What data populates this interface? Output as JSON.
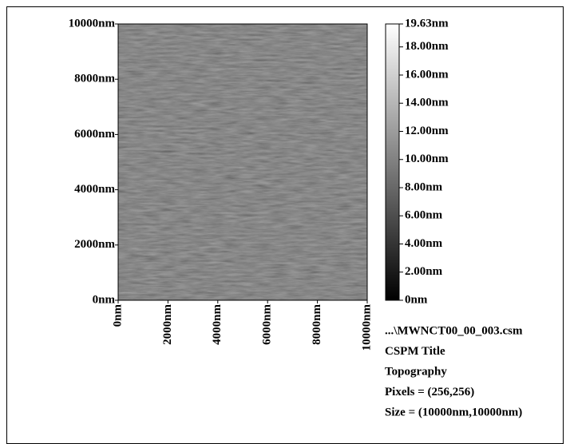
{
  "chart_data": {
    "type": "image",
    "xlim": [
      0,
      10000
    ],
    "ylim": [
      0,
      10000
    ],
    "xticks": [
      {
        "value": 0,
        "label": "0nm"
      },
      {
        "value": 2000,
        "label": "2000nm"
      },
      {
        "value": 4000,
        "label": "4000nm"
      },
      {
        "value": 6000,
        "label": "6000nm"
      },
      {
        "value": 8000,
        "label": "8000nm"
      },
      {
        "value": 10000,
        "label": "10000nm"
      }
    ],
    "yticks": [
      {
        "value": 0,
        "label": "0nm"
      },
      {
        "value": 2000,
        "label": "2000nm"
      },
      {
        "value": 4000,
        "label": "4000nm"
      },
      {
        "value": 6000,
        "label": "6000nm"
      },
      {
        "value": 8000,
        "label": "8000nm"
      },
      {
        "value": 10000,
        "label": "10000nm"
      }
    ],
    "colorbar": {
      "lim": [
        0,
        19.63
      ],
      "ticks": [
        {
          "value": 0,
          "label": "0nm"
        },
        {
          "value": 2,
          "label": "2.00nm"
        },
        {
          "value": 4,
          "label": "4.00nm"
        },
        {
          "value": 6,
          "label": "6.00nm"
        },
        {
          "value": 8,
          "label": "8.00nm"
        },
        {
          "value": 10,
          "label": "10.00nm"
        },
        {
          "value": 12,
          "label": "12.00nm"
        },
        {
          "value": 14,
          "label": "14.00nm"
        },
        {
          "value": 16,
          "label": "16.00nm"
        },
        {
          "value": 18,
          "label": "18.00nm"
        },
        {
          "value": 19.63,
          "label": "19.63nm"
        }
      ]
    },
    "annotations": [
      "...\\MWNCT00_00_003.csm",
      "CSPM Title",
      "Topography",
      "Pixels = (256,256)",
      "Size = (10000nm,10000nm)"
    ]
  }
}
